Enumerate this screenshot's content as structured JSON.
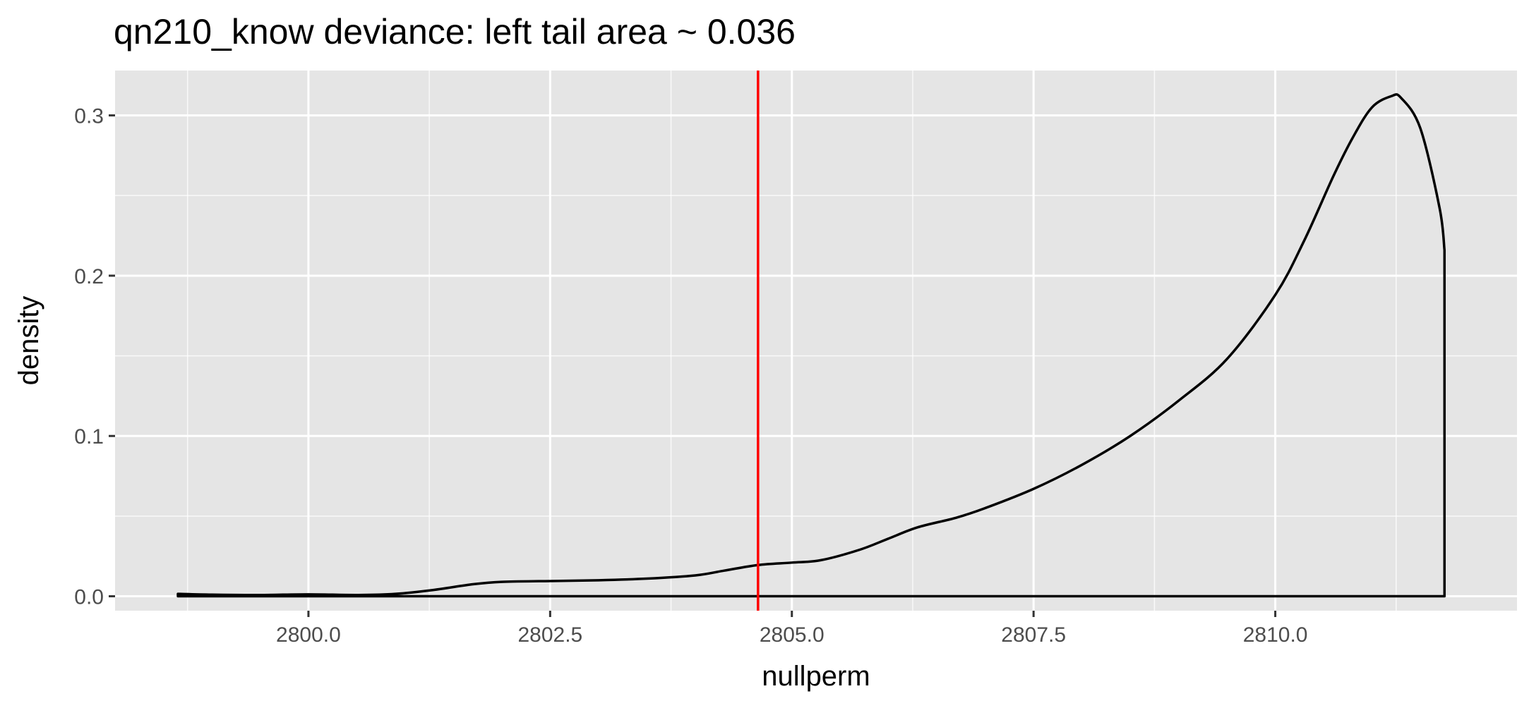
{
  "chart_data": {
    "type": "area",
    "title": "qn210_know deviance: left tail area ~ 0.036",
    "xlabel": "nullperm",
    "ylabel": "density",
    "xlim": [
      2798.0,
      2812.5
    ],
    "ylim": [
      -0.009,
      0.328
    ],
    "x_ticks": [
      2800.0,
      2802.5,
      2805.0,
      2807.5,
      2810.0
    ],
    "x_tick_labels": [
      "2800.0",
      "2802.5",
      "2805.0",
      "2807.5",
      "2810.0"
    ],
    "y_ticks": [
      0.0,
      0.1,
      0.2,
      0.3
    ],
    "y_tick_labels": [
      "0.0",
      "0.1",
      "0.2",
      "0.3"
    ],
    "grid": true,
    "vline": {
      "x": 2804.65,
      "color": "#ff0000"
    },
    "density": {
      "x": [
        2798.65,
        2799.0,
        2799.5,
        2800.0,
        2800.5,
        2800.9,
        2801.3,
        2801.7,
        2802.0,
        2802.5,
        2803.0,
        2803.5,
        2804.0,
        2804.3,
        2804.65,
        2805.0,
        2805.3,
        2805.7,
        2806.0,
        2806.3,
        2806.7,
        2807.0,
        2807.5,
        2808.0,
        2808.5,
        2809.0,
        2809.5,
        2810.0,
        2810.3,
        2810.6,
        2810.8,
        2811.0,
        2811.2,
        2811.3,
        2811.5,
        2811.7,
        2811.75
      ],
      "y": [
        0.0015,
        0.001,
        0.0008,
        0.0012,
        0.0008,
        0.0015,
        0.004,
        0.0075,
        0.009,
        0.0095,
        0.01,
        0.011,
        0.013,
        0.016,
        0.0195,
        0.021,
        0.0225,
        0.029,
        0.036,
        0.043,
        0.049,
        0.055,
        0.067,
        0.082,
        0.1,
        0.122,
        0.148,
        0.188,
        0.222,
        0.262,
        0.286,
        0.305,
        0.312,
        0.311,
        0.292,
        0.242,
        0.216
      ]
    },
    "colors": {
      "panel": "#e5e5e5",
      "grid_major": "#ffffff",
      "line": "#000000",
      "vline": "#ff0000"
    }
  }
}
